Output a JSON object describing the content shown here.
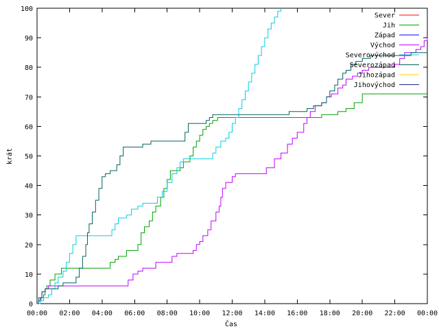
{
  "chart_data": {
    "type": "line",
    "title": "",
    "xlabel": "Čas",
    "ylabel": "krát",
    "xlim": [
      0,
      24
    ],
    "ylim": [
      0,
      100
    ],
    "grid": false,
    "legend_position": "top-right",
    "x_ticks": [
      {
        "value": 0,
        "label": "00:00"
      },
      {
        "value": 2,
        "label": "02:00"
      },
      {
        "value": 4,
        "label": "04:00"
      },
      {
        "value": 6,
        "label": "06:00"
      },
      {
        "value": 8,
        "label": "08:00"
      },
      {
        "value": 10,
        "label": "10:00"
      },
      {
        "value": 12,
        "label": "12:00"
      },
      {
        "value": 14,
        "label": "14:00"
      },
      {
        "value": 16,
        "label": "16:00"
      },
      {
        "value": 18,
        "label": "18:00"
      },
      {
        "value": 20,
        "label": "20:00"
      },
      {
        "value": 22,
        "label": "22:00"
      },
      {
        "value": 24,
        "label": "00:00"
      }
    ],
    "y_ticks": [
      0,
      10,
      20,
      30,
      40,
      50,
      60,
      70,
      80,
      90,
      100
    ],
    "series": [
      {
        "name": "Sever",
        "color": "#ff0000",
        "points": []
      },
      {
        "name": "Jih",
        "color": "#00a000",
        "points": [
          [
            0,
            0
          ],
          [
            0.1,
            1
          ],
          [
            0.25,
            2
          ],
          [
            0.4,
            3
          ],
          [
            0.5,
            5
          ],
          [
            0.6,
            6
          ],
          [
            0.8,
            8
          ],
          [
            1.1,
            10
          ],
          [
            1.5,
            12
          ],
          [
            2.0,
            12
          ],
          [
            3.0,
            12
          ],
          [
            3.5,
            12
          ],
          [
            4.4,
            12
          ],
          [
            4.5,
            14
          ],
          [
            4.8,
            15
          ],
          [
            5.0,
            16
          ],
          [
            5.5,
            18
          ],
          [
            6.0,
            18
          ],
          [
            6.2,
            20
          ],
          [
            6.4,
            24
          ],
          [
            6.6,
            26
          ],
          [
            6.9,
            28
          ],
          [
            7.1,
            31
          ],
          [
            7.3,
            33
          ],
          [
            7.6,
            36
          ],
          [
            7.8,
            39
          ],
          [
            8.0,
            42
          ],
          [
            8.2,
            45
          ],
          [
            8.5,
            45
          ],
          [
            8.8,
            46
          ],
          [
            9.0,
            48
          ],
          [
            9.4,
            50
          ],
          [
            9.6,
            53
          ],
          [
            9.8,
            55
          ],
          [
            10.0,
            57
          ],
          [
            10.2,
            59
          ],
          [
            10.4,
            60
          ],
          [
            10.6,
            61
          ],
          [
            10.8,
            62
          ],
          [
            11.1,
            63
          ],
          [
            12.0,
            63
          ],
          [
            13.0,
            63
          ],
          [
            14.0,
            63
          ],
          [
            15.0,
            63
          ],
          [
            16.0,
            63
          ],
          [
            16.4,
            63
          ],
          [
            17.5,
            64
          ],
          [
            18.0,
            64
          ],
          [
            18.5,
            65
          ],
          [
            19.0,
            66
          ],
          [
            19.5,
            68
          ],
          [
            20.0,
            71
          ],
          [
            22.0,
            71
          ],
          [
            24.0,
            71
          ]
        ]
      },
      {
        "name": "Západ",
        "color": "#0000ff",
        "points": []
      },
      {
        "name": "Východ",
        "color": "#c000ff",
        "points": [
          [
            0,
            0
          ],
          [
            0.1,
            1
          ],
          [
            0.2,
            2
          ],
          [
            0.3,
            4
          ],
          [
            0.5,
            5
          ],
          [
            0.7,
            6
          ],
          [
            1.0,
            6
          ],
          [
            2.0,
            6
          ],
          [
            3.0,
            6
          ],
          [
            4.0,
            6
          ],
          [
            5.0,
            6
          ],
          [
            5.5,
            6
          ],
          [
            5.6,
            8
          ],
          [
            5.9,
            10
          ],
          [
            6.2,
            11
          ],
          [
            6.5,
            12
          ],
          [
            7.0,
            12
          ],
          [
            7.3,
            14
          ],
          [
            8.0,
            14
          ],
          [
            8.3,
            16
          ],
          [
            8.6,
            17
          ],
          [
            9.5,
            17
          ],
          [
            9.6,
            18
          ],
          [
            9.8,
            20
          ],
          [
            10.0,
            21
          ],
          [
            10.2,
            23
          ],
          [
            10.5,
            25
          ],
          [
            10.7,
            28
          ],
          [
            11.0,
            31
          ],
          [
            11.2,
            33
          ],
          [
            11.3,
            36
          ],
          [
            11.4,
            39
          ],
          [
            11.6,
            41
          ],
          [
            12.0,
            43
          ],
          [
            12.2,
            44
          ],
          [
            13.0,
            44
          ],
          [
            13.5,
            44
          ],
          [
            14.1,
            46
          ],
          [
            14.6,
            49
          ],
          [
            15.0,
            51
          ],
          [
            15.4,
            54
          ],
          [
            15.7,
            56
          ],
          [
            16.0,
            58
          ],
          [
            16.4,
            61
          ],
          [
            16.6,
            63
          ],
          [
            16.8,
            65
          ],
          [
            17.1,
            67
          ],
          [
            17.5,
            68
          ],
          [
            17.8,
            70
          ],
          [
            18.1,
            71
          ],
          [
            18.5,
            73
          ],
          [
            18.8,
            74
          ],
          [
            19.0,
            76
          ],
          [
            19.4,
            77
          ],
          [
            19.7,
            78
          ],
          [
            20.0,
            79
          ],
          [
            20.4,
            80
          ],
          [
            21.5,
            80
          ],
          [
            22.0,
            81
          ],
          [
            22.3,
            83
          ],
          [
            22.6,
            85
          ],
          [
            23.0,
            85
          ],
          [
            23.3,
            86
          ],
          [
            23.6,
            87
          ],
          [
            23.8,
            89
          ],
          [
            24.0,
            90
          ]
        ]
      },
      {
        "name": "Severovýchod",
        "color": "#00d0e0",
        "points": [
          [
            0,
            0
          ],
          [
            0.2,
            1
          ],
          [
            0.4,
            2
          ],
          [
            0.7,
            3
          ],
          [
            0.9,
            5
          ],
          [
            1.1,
            7
          ],
          [
            1.3,
            9
          ],
          [
            1.6,
            11
          ],
          [
            1.8,
            14
          ],
          [
            2.0,
            17
          ],
          [
            2.2,
            20
          ],
          [
            2.4,
            23
          ],
          [
            3.0,
            23
          ],
          [
            4.0,
            23
          ],
          [
            4.5,
            23
          ],
          [
            4.6,
            25
          ],
          [
            4.8,
            27
          ],
          [
            5.0,
            29
          ],
          [
            5.5,
            30
          ],
          [
            5.8,
            32
          ],
          [
            6.2,
            33
          ],
          [
            6.5,
            34
          ],
          [
            7.0,
            34
          ],
          [
            7.4,
            36
          ],
          [
            7.7,
            38
          ],
          [
            8.0,
            41
          ],
          [
            8.3,
            44
          ],
          [
            8.6,
            46
          ],
          [
            8.8,
            48
          ],
          [
            9.0,
            49
          ],
          [
            10.0,
            49
          ],
          [
            10.6,
            49
          ],
          [
            10.8,
            51
          ],
          [
            11.0,
            53
          ],
          [
            11.3,
            55
          ],
          [
            11.6,
            56
          ],
          [
            11.8,
            58
          ],
          [
            12.0,
            61
          ],
          [
            12.2,
            63
          ],
          [
            12.4,
            66
          ],
          [
            12.6,
            69
          ],
          [
            12.8,
            72
          ],
          [
            13.0,
            75
          ],
          [
            13.2,
            78
          ],
          [
            13.4,
            81
          ],
          [
            13.6,
            84
          ],
          [
            13.8,
            87
          ],
          [
            14.0,
            90
          ],
          [
            14.2,
            93
          ],
          [
            14.4,
            95
          ],
          [
            14.6,
            97
          ],
          [
            14.8,
            99
          ],
          [
            15.0,
            100
          ]
        ]
      },
      {
        "name": "Severozápad",
        "color": "#006060",
        "points": [
          [
            0,
            0
          ],
          [
            0.1,
            2
          ],
          [
            0.3,
            4
          ],
          [
            0.5,
            5
          ],
          [
            0.8,
            5
          ],
          [
            1.0,
            5
          ],
          [
            1.3,
            6
          ],
          [
            1.6,
            7
          ],
          [
            2.0,
            7
          ],
          [
            2.2,
            7
          ],
          [
            2.4,
            9
          ],
          [
            2.6,
            12
          ],
          [
            2.8,
            16
          ],
          [
            3.0,
            20
          ],
          [
            3.1,
            24
          ],
          [
            3.2,
            27
          ],
          [
            3.4,
            31
          ],
          [
            3.6,
            35
          ],
          [
            3.8,
            39
          ],
          [
            4.0,
            43
          ],
          [
            4.2,
            44
          ],
          [
            4.5,
            45
          ],
          [
            4.9,
            47
          ],
          [
            5.1,
            50
          ],
          [
            5.3,
            53
          ],
          [
            5.8,
            53
          ],
          [
            6.5,
            54
          ],
          [
            7.0,
            55
          ],
          [
            8.0,
            55
          ],
          [
            9.0,
            55
          ],
          [
            9.1,
            58
          ],
          [
            9.3,
            61
          ],
          [
            10.0,
            61
          ],
          [
            10.4,
            62
          ],
          [
            10.6,
            63
          ],
          [
            10.8,
            64
          ],
          [
            12.0,
            64
          ],
          [
            13.0,
            64
          ],
          [
            14.0,
            64
          ],
          [
            15.0,
            64
          ],
          [
            15.5,
            65
          ],
          [
            16.0,
            65
          ],
          [
            16.6,
            66
          ],
          [
            17.0,
            67
          ],
          [
            17.5,
            68
          ],
          [
            17.8,
            70
          ],
          [
            18.0,
            72
          ],
          [
            18.3,
            74
          ],
          [
            18.5,
            76
          ],
          [
            18.8,
            78
          ],
          [
            19.0,
            79
          ],
          [
            19.3,
            81
          ],
          [
            19.6,
            82
          ],
          [
            20.0,
            83
          ],
          [
            20.5,
            84
          ],
          [
            21.0,
            84
          ],
          [
            22.0,
            84
          ],
          [
            22.5,
            84
          ],
          [
            23.0,
            85
          ],
          [
            23.5,
            85
          ],
          [
            24.0,
            85
          ]
        ]
      },
      {
        "name": "Jihozápad",
        "color": "#ffd000",
        "points": []
      },
      {
        "name": "Jihovýchod",
        "color": "#20208a",
        "points": []
      }
    ]
  }
}
